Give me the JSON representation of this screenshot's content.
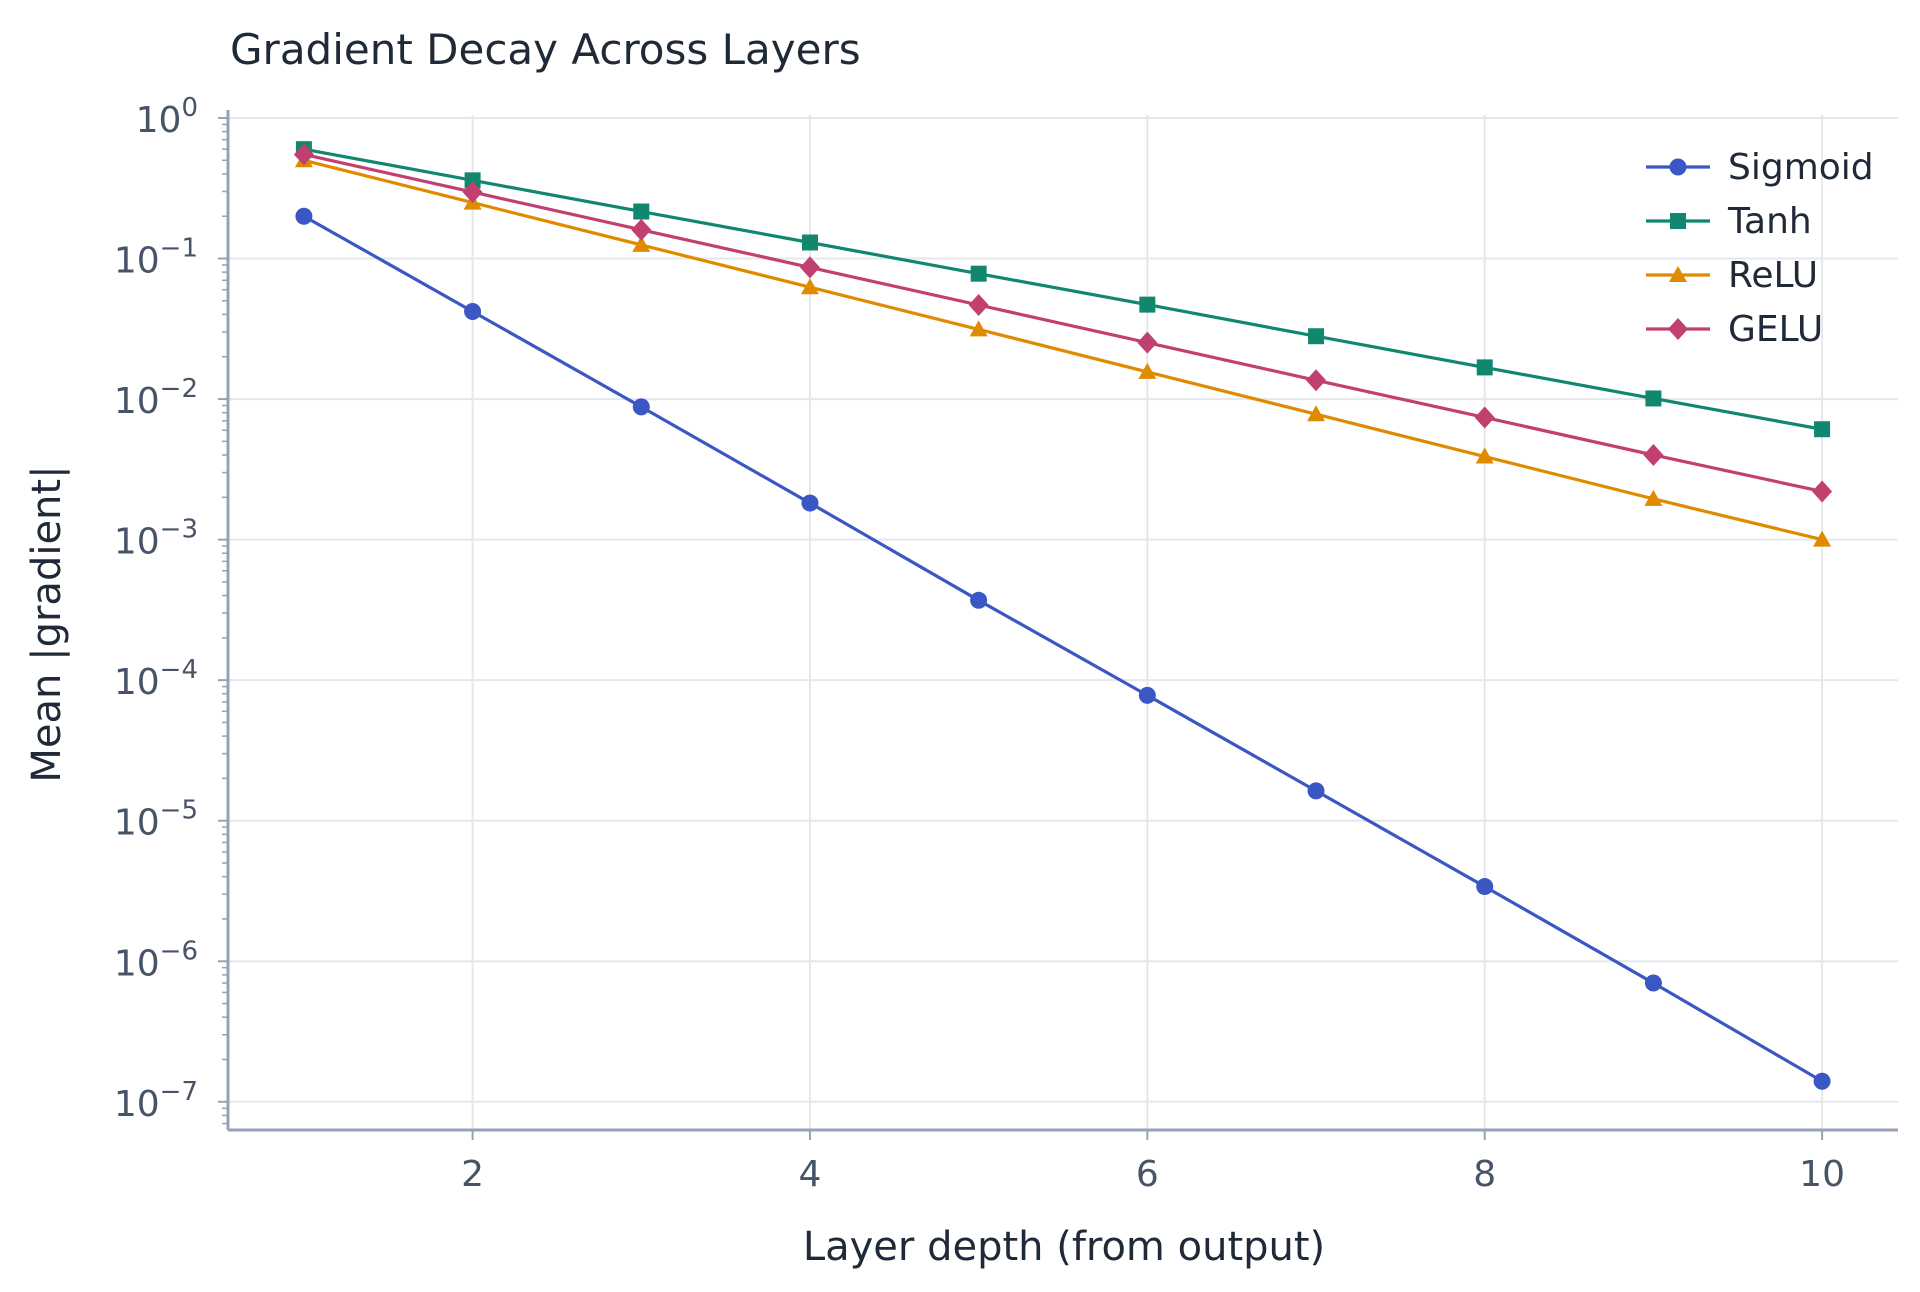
{
  "chart_data": {
    "type": "line",
    "title": "Gradient Decay Across Layers",
    "xlabel": "Layer depth (from output)",
    "ylabel": "Mean |gradient|",
    "yscale": "log",
    "xlim": [
      0.55,
      10.45
    ],
    "ylim": [
      6.3e-08,
      1.05
    ],
    "xticks": [
      2,
      4,
      6,
      8,
      10
    ],
    "yticks": [
      {
        "value": 1,
        "base": "10",
        "exp": "0"
      },
      {
        "value": 0.1,
        "base": "10",
        "exp": "−1"
      },
      {
        "value": 0.01,
        "base": "10",
        "exp": "−2"
      },
      {
        "value": 0.001,
        "base": "10",
        "exp": "−3"
      },
      {
        "value": 0.0001,
        "base": "10",
        "exp": "−4"
      },
      {
        "value": 1e-05,
        "base": "10",
        "exp": "−5"
      },
      {
        "value": 1e-06,
        "base": "10",
        "exp": "−6"
      },
      {
        "value": 1e-07,
        "base": "10",
        "exp": "−7"
      }
    ],
    "grid": true,
    "legend_position": "top-right",
    "x": [
      1,
      2,
      3,
      4,
      5,
      6,
      7,
      8,
      9,
      10
    ],
    "series": [
      {
        "name": "Sigmoid",
        "color": "#3a57c4",
        "marker": "circle",
        "values": [
          0.2,
          0.042,
          0.0088,
          0.00182,
          0.00037,
          7.8e-05,
          1.63e-05,
          3.4e-06,
          7e-07,
          1.4e-07
        ]
      },
      {
        "name": "Tanh",
        "color": "#12876f",
        "marker": "square",
        "values": [
          0.6,
          0.36,
          0.216,
          0.13,
          0.078,
          0.047,
          0.028,
          0.0168,
          0.0101,
          0.0061
        ]
      },
      {
        "name": "ReLU",
        "color": "#e08a00",
        "marker": "triangle",
        "values": [
          0.5,
          0.25,
          0.125,
          0.0625,
          0.0313,
          0.0156,
          0.0078,
          0.0039,
          0.00195,
          0.001
        ]
      },
      {
        "name": "GELU",
        "color": "#c2406f",
        "marker": "diamond",
        "values": [
          0.55,
          0.297,
          0.16,
          0.0865,
          0.0467,
          0.0252,
          0.0136,
          0.0074,
          0.004,
          0.0022
        ]
      }
    ]
  }
}
